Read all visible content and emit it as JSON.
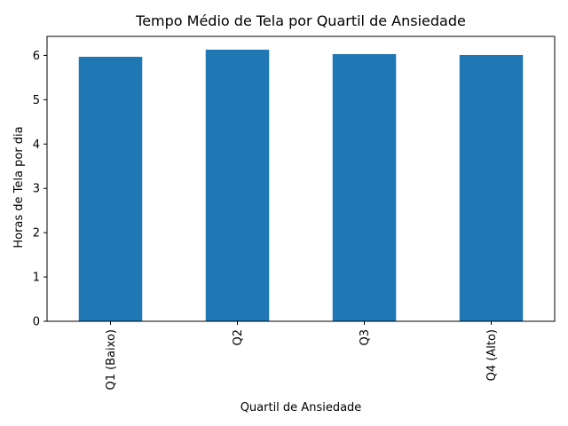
{
  "chart_data": {
    "type": "bar",
    "title": "Tempo Médio de Tela por Quartil de Ansiedade",
    "xlabel": "Quartil de Ansiedade",
    "ylabel": "Horas de Tela por dia",
    "categories": [
      "Q1 (Baixo)",
      "Q2",
      "Q3",
      "Q4 (Alto)"
    ],
    "values": [
      5.97,
      6.13,
      6.03,
      6.01
    ],
    "ylim": [
      0,
      6.43
    ],
    "yticks": [
      0,
      1,
      2,
      3,
      4,
      5,
      6
    ],
    "bar_color": "#1f77b4",
    "grid": false
  }
}
